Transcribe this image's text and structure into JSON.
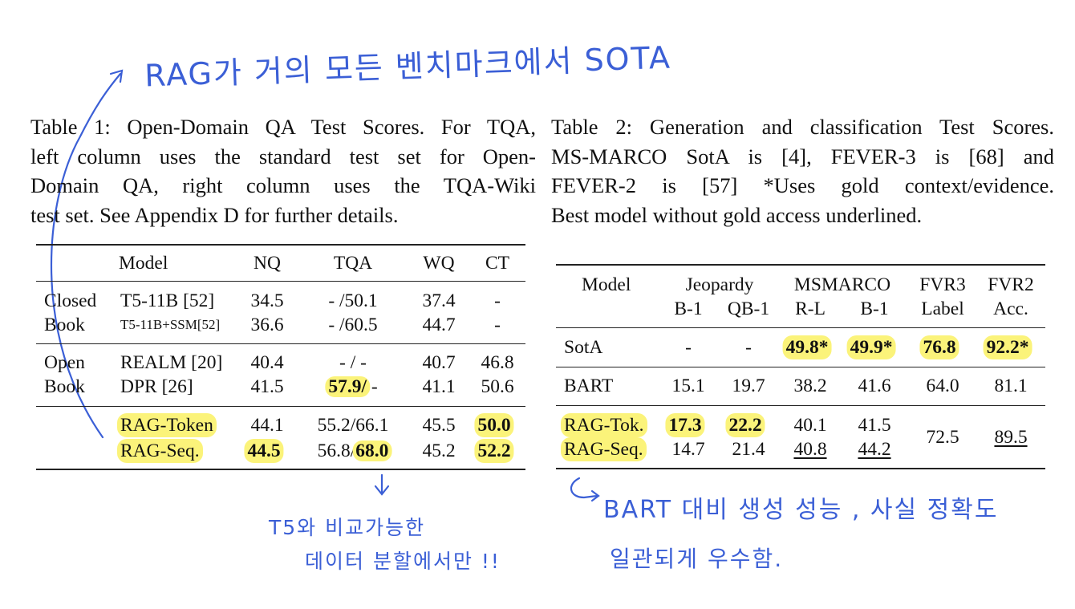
{
  "annotations": {
    "top": "RAG가 거의 모든 벤치마크에서 SOTA",
    "left": [
      "T5와 비교가능한",
      "데이터 분할에서만 !!"
    ],
    "right": [
      "BART 대비 생성 성능 , 사실 정확도",
      "일관되게 우수함."
    ]
  },
  "table1": {
    "caption": [
      "Table 1: Open-Domain QA Test Scores. For TQA,",
      "left column uses the standard test set for Open-",
      "Domain QA, right column uses the TQA-Wiki",
      "test set. See Appendix D for further details."
    ],
    "header": [
      "Model",
      "NQ",
      "TQA",
      "WQ",
      "CT"
    ],
    "rows": [
      {
        "group": "Closed",
        "model": "T5-11B [52]",
        "values": [
          "34.5",
          "- /50.1",
          "37.4",
          "-"
        ]
      },
      {
        "group": "Book",
        "model": "T5-11B+SSM[52]",
        "values": [
          "36.6",
          "- /60.5",
          "44.7",
          "-"
        ]
      },
      {
        "group": "Open",
        "model": "REALM [20]",
        "values": [
          "40.4",
          "- / -",
          "40.7",
          "46.8"
        ]
      },
      {
        "group": "Book",
        "model": "DPR [26]",
        "values": [
          "41.5",
          [
            "57.9/",
            " -"
          ],
          "41.1",
          "50.6"
        ]
      },
      {
        "model": "RAG-Token",
        "values": [
          "44.1",
          "55.2/66.1",
          "45.5",
          "50.0"
        ]
      },
      {
        "model": "RAG-Seq.",
        "values": [
          "44.5",
          [
            "56.8/",
            "68.0"
          ],
          "45.2",
          "52.2"
        ]
      }
    ]
  },
  "table2": {
    "caption": [
      "Table 2: Generation and classification Test Scores.",
      "MS-MARCO SotA is [4], FEVER-3 is [68] and",
      "FEVER-2 is [57] *Uses gold context/evidence.",
      "Best model without gold access underlined."
    ],
    "header": [
      "Model",
      "Jeopardy",
      "MSMARCO",
      "FVR3",
      "FVR2"
    ],
    "subheader": [
      "B-1",
      "QB-1",
      "R-L",
      "B-1",
      "Label",
      "Acc."
    ],
    "rows": [
      {
        "model": "SotA",
        "values": [
          "-",
          "-",
          "49.8*",
          "49.9*",
          "76.8",
          "92.2*"
        ]
      },
      {
        "model": "BART",
        "values": [
          "15.1",
          "19.7",
          "38.2",
          "41.6",
          "64.0",
          "81.1"
        ]
      },
      {
        "model": "RAG-Tok.",
        "values": [
          "17.3",
          "22.2",
          "40.1",
          "41.5",
          "72.5",
          "89.5"
        ]
      },
      {
        "model": "RAG-Seq.",
        "values": [
          "14.7",
          "21.4",
          "40.8",
          "44.2"
        ]
      }
    ]
  }
}
